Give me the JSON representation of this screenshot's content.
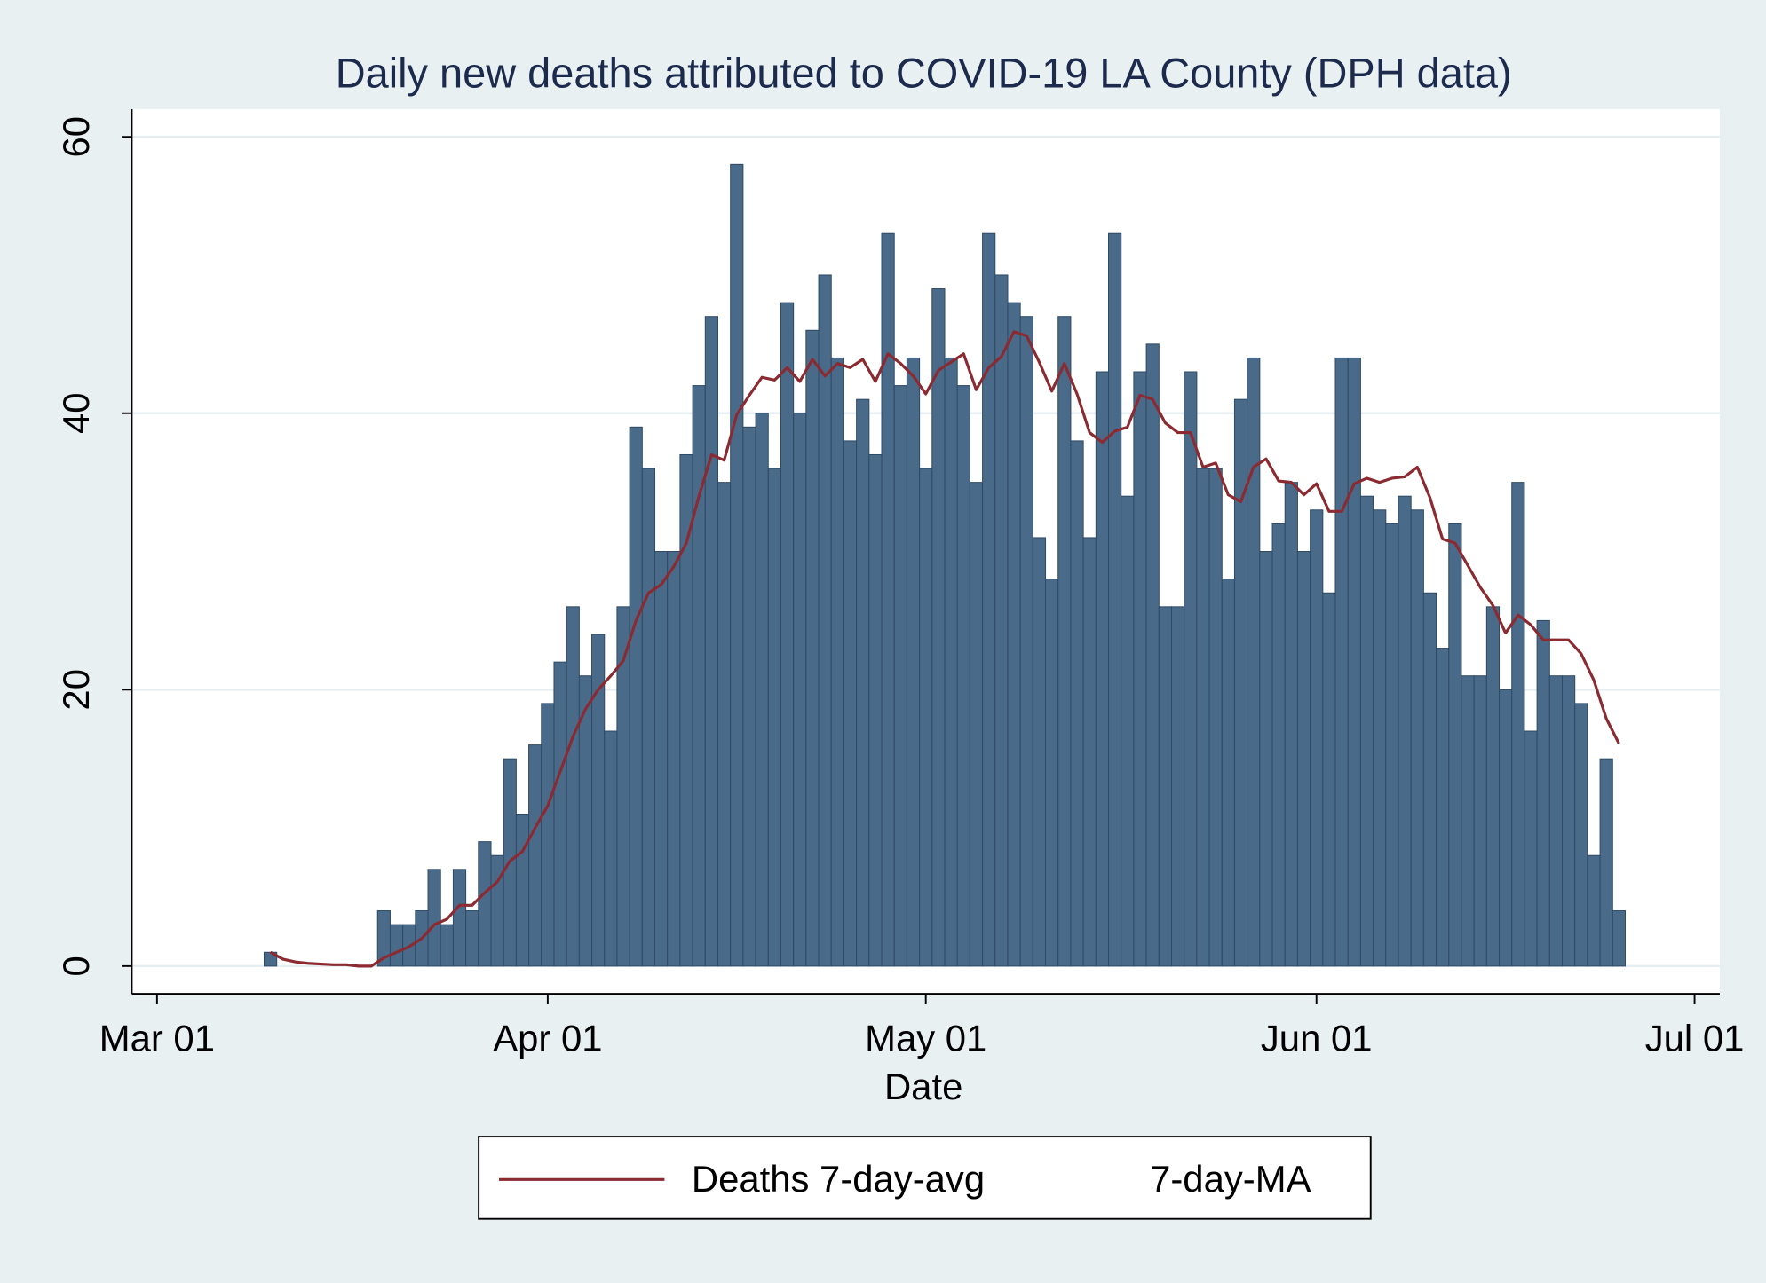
{
  "chart_data": {
    "type": "bar",
    "title": "Daily new deaths attributed to COVID-19 LA County (DPH data)",
    "x_label": "Date",
    "xlim": [
      "Feb 27",
      "Jul 03"
    ],
    "xticks": [
      "Mar 01",
      "Apr 01",
      "May 01",
      "Jun 01",
      "Jul 01"
    ],
    "ylim": [
      -2,
      62
    ],
    "yticks": [
      0,
      20,
      40,
      60
    ],
    "grid": true,
    "legend": "bottom",
    "series": [
      {
        "type": "line",
        "name": "Deaths 7-day-avg",
        "color": "#8b2a30",
        "show_key": true,
        "x": [
          "Mar 10",
          "Mar 11",
          "Mar 12",
          "Mar 13",
          "Mar 14",
          "Mar 15",
          "Mar 16",
          "Mar 17",
          "Mar 18",
          "Mar 19",
          "Mar 20",
          "Mar 21",
          "Mar 22",
          "Mar 23",
          "Mar 24",
          "Mar 25",
          "Mar 26",
          "Mar 27",
          "Mar 28",
          "Mar 29",
          "Mar 30",
          "Mar 31",
          "Apr 01",
          "Apr 02",
          "Apr 03",
          "Apr 04",
          "Apr 05",
          "Apr 06",
          "Apr 07",
          "Apr 08",
          "Apr 09",
          "Apr 10",
          "Apr 11",
          "Apr 12",
          "Apr 13",
          "Apr 14",
          "Apr 15",
          "Apr 16",
          "Apr 17",
          "Apr 18",
          "Apr 19",
          "Apr 20",
          "Apr 21",
          "Apr 22",
          "Apr 23",
          "Apr 24",
          "Apr 25",
          "Apr 26",
          "Apr 27",
          "Apr 28",
          "Apr 29",
          "Apr 30",
          "May 01",
          "May 02",
          "May 03",
          "May 04",
          "May 05",
          "May 06",
          "May 07",
          "May 08",
          "May 09",
          "May 10",
          "May 11",
          "May 12",
          "May 13",
          "May 14",
          "May 15",
          "May 16",
          "May 17",
          "May 18",
          "May 19",
          "May 20",
          "May 21",
          "May 22",
          "May 23",
          "May 24",
          "May 25",
          "May 26",
          "May 27",
          "May 28",
          "May 29",
          "May 30",
          "May 31",
          "Jun 01",
          "Jun 02",
          "Jun 03",
          "Jun 04",
          "Jun 05",
          "Jun 06",
          "Jun 07",
          "Jun 08",
          "Jun 09",
          "Jun 10",
          "Jun 11",
          "Jun 12",
          "Jun 13",
          "Jun 14",
          "Jun 15",
          "Jun 16",
          "Jun 17",
          "Jun 18",
          "Jun 19",
          "Jun 20",
          "Jun 21",
          "Jun 22",
          "Jun 23",
          "Jun 24",
          "Jun 25"
        ],
        "values": [
          1,
          0.5,
          0.3,
          0.2,
          0.15,
          0.1,
          0.1,
          0,
          0,
          0.6,
          1.0,
          1.4,
          2.0,
          3.0,
          3.4,
          4.4,
          4.4,
          5.3,
          6.1,
          7.6,
          8.3,
          10.0,
          11.6,
          14.1,
          16.6,
          18.6,
          20.0,
          21.0,
          22.1,
          25.0,
          27.0,
          27.6,
          28.9,
          30.6,
          34.0,
          37.0,
          36.6,
          39.9,
          41.3,
          42.6,
          42.4,
          43.3,
          42.3,
          43.9,
          42.7,
          43.6,
          43.3,
          43.9,
          42.3,
          44.3,
          43.6,
          42.7,
          41.4,
          43.1,
          43.7,
          44.3,
          41.7,
          43.3,
          44.1,
          45.9,
          45.6,
          43.7,
          41.6,
          43.6,
          41.4,
          38.6,
          37.9,
          38.7,
          39.0,
          41.3,
          41.0,
          39.3,
          38.6,
          38.6,
          36.1,
          36.4,
          34.1,
          33.6,
          36.1,
          36.7,
          35.1,
          35.0,
          34.1,
          34.9,
          32.9,
          32.9,
          34.9,
          35.3,
          35.0,
          35.3,
          35.4,
          36.1,
          33.9,
          30.9,
          30.6,
          29.0,
          27.4,
          26.1,
          24.1,
          25.4,
          24.7,
          23.6,
          23.6,
          23.6,
          22.6,
          20.7,
          17.9,
          16.1
        ]
      },
      {
        "type": "bar",
        "name": "7-day-MA",
        "color": "#4a6a8a",
        "show_key": false,
        "x": [
          "Mar 10",
          "Mar 19",
          "Mar 20",
          "Mar 21",
          "Mar 22",
          "Mar 23",
          "Mar 24",
          "Mar 25",
          "Mar 26",
          "Mar 27",
          "Mar 28",
          "Mar 29",
          "Mar 30",
          "Mar 31",
          "Apr 01",
          "Apr 02",
          "Apr 03",
          "Apr 04",
          "Apr 05",
          "Apr 06",
          "Apr 07",
          "Apr 08",
          "Apr 09",
          "Apr 10",
          "Apr 11",
          "Apr 12",
          "Apr 13",
          "Apr 14",
          "Apr 15",
          "Apr 16",
          "Apr 17",
          "Apr 18",
          "Apr 19",
          "Apr 20",
          "Apr 21",
          "Apr 22",
          "Apr 23",
          "Apr 24",
          "Apr 25",
          "Apr 26",
          "Apr 27",
          "Apr 28",
          "Apr 29",
          "Apr 30",
          "May 01",
          "May 02",
          "May 03",
          "May 04",
          "May 05",
          "May 06",
          "May 07",
          "May 08",
          "May 09",
          "May 10",
          "May 11",
          "May 12",
          "May 13",
          "May 14",
          "May 15",
          "May 16",
          "May 17",
          "May 18",
          "May 19",
          "May 20",
          "May 21",
          "May 22",
          "May 23",
          "May 24",
          "May 25",
          "May 26",
          "May 27",
          "May 28",
          "May 29",
          "May 30",
          "May 31",
          "Jun 01",
          "Jun 02",
          "Jun 03",
          "Jun 04",
          "Jun 05",
          "Jun 06",
          "Jun 07",
          "Jun 08",
          "Jun 09",
          "Jun 10",
          "Jun 11",
          "Jun 12",
          "Jun 13",
          "Jun 14",
          "Jun 15",
          "Jun 16",
          "Jun 17",
          "Jun 18",
          "Jun 19",
          "Jun 20",
          "Jun 21",
          "Jun 22",
          "Jun 23",
          "Jun 24",
          "Jun 25"
        ],
        "values": [
          1,
          4,
          3,
          3,
          4,
          7,
          3,
          7,
          4,
          9,
          8,
          15,
          11,
          16,
          19,
          22,
          26,
          21,
          24,
          17,
          26,
          39,
          36,
          30,
          30,
          37,
          42,
          47,
          35,
          58,
          39,
          40,
          36,
          48,
          40,
          46,
          50,
          44,
          38,
          41,
          37,
          53,
          42,
          44,
          36,
          49,
          44,
          42,
          35,
          53,
          50,
          48,
          47,
          31,
          28,
          47,
          38,
          31,
          43,
          53,
          34,
          43,
          45,
          26,
          26,
          43,
          36,
          36,
          28,
          41,
          44,
          30,
          32,
          35,
          30,
          33,
          27,
          44,
          44,
          34,
          33,
          32,
          34,
          33,
          27,
          23,
          32,
          21,
          21,
          26,
          20,
          35,
          17,
          25,
          21,
          21,
          19,
          8,
          15,
          4
        ]
      }
    ]
  }
}
